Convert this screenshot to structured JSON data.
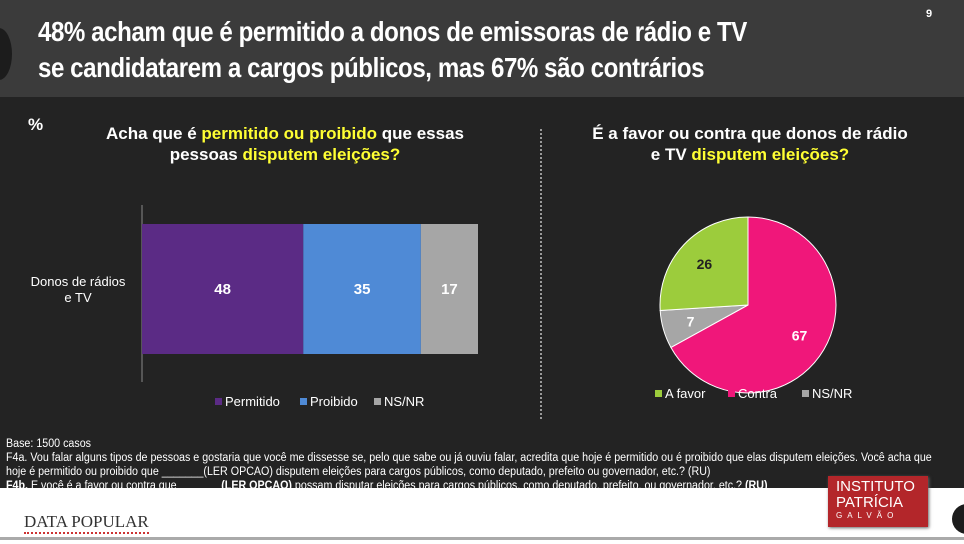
{
  "header": {
    "title": "48% acham que é permitido a donos de emissoras de rádio e TV se candidatarem a cargos públicos, mas 67% são contrários",
    "page_number": "9"
  },
  "unit_label": "%",
  "chart_data": [
    {
      "type": "bar",
      "orientation": "horizontal-stacked",
      "title_parts": [
        "Acha que é ",
        "permitido ou proibido",
        " que essas pessoas ",
        "disputem eleições?"
      ],
      "categories": [
        "Donos de rádios e TV"
      ],
      "series": [
        {
          "name": "Permitido",
          "values": [
            48
          ],
          "color": "#5b2b85"
        },
        {
          "name": "Proibido",
          "values": [
            35
          ],
          "color": "#4f8ad6"
        },
        {
          "name": "NS/NR",
          "values": [
            17
          ],
          "color": "#a6a6a6"
        }
      ],
      "legend": "bottom"
    },
    {
      "type": "pie",
      "title_parts": [
        "É a favor ou contra que donos de rádio e TV ",
        "disputem eleições?"
      ],
      "slices": [
        {
          "name": "A favor",
          "value": 26,
          "color": "#9ccc3c"
        },
        {
          "name": "Contra",
          "value": 67,
          "color": "#f0177a"
        },
        {
          "name": "NS/NR",
          "value": 7,
          "color": "#a6a6a6"
        }
      ],
      "legend": "bottom"
    }
  ],
  "footer": {
    "base": "Base: 1500 casos",
    "f4a": "F4a. Vou falar alguns tipos de pessoas e gostaria que você me dissesse se, pelo que sabe ou já ouviu falar, acredita que hoje é permitido ou é proibido que elas disputem eleições. Você acha que hoje é permitido ou proibido que _______(LER OPCAO) disputem eleições para cargos públicos, como deputado, prefeito ou governador, etc.? (RU)",
    "f4b_label": "F4b.",
    "f4b_a": " E você é a favor ou contra que ",
    "f4b_blank": "_______(LER OPCAO)",
    "f4b_b": " possam disputar eleições para cargos públicos, como deputado, prefeito, ou governador, etc.? ",
    "f4b_ru": "(RU)",
    "logo_left": "DATA POPULAR",
    "logo_right": [
      "INSTITUTO",
      "PATRÍCIA",
      "GALVÃO"
    ]
  }
}
